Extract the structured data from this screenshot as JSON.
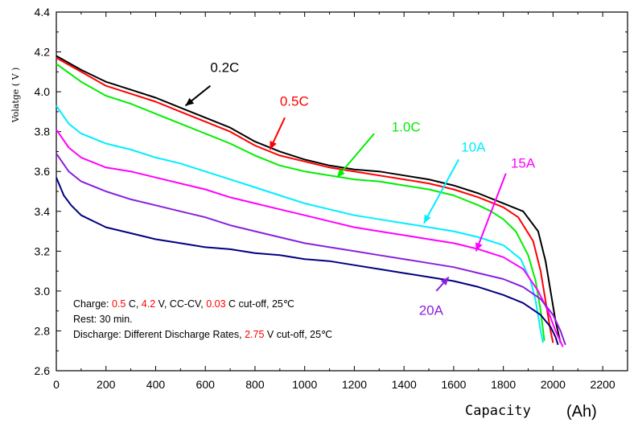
{
  "chart_data": {
    "type": "line",
    "xlabel_main": "Capacity",
    "xlabel_unit": "(Ah)",
    "ylabel": "Volatge ( V )",
    "xlim": [
      0,
      2300
    ],
    "ylim": [
      2.6,
      4.4
    ],
    "x_ticks": [
      "0",
      "200",
      "400",
      "600",
      "800",
      "1000",
      "1200",
      "1400",
      "1600",
      "1800",
      "2000",
      "2200"
    ],
    "y_ticks": [
      "2.6",
      "2.8",
      "3.0",
      "3.2",
      "3.4",
      "3.6",
      "3.8",
      "4.0",
      "4.2",
      "4.4"
    ],
    "grid": false,
    "series": [
      {
        "name": "0.2C",
        "color": "#000000",
        "label_x": 620,
        "label_y": 4.1,
        "arrow_from": [
          620,
          4.03
        ],
        "arrow_to": [
          520,
          3.93
        ],
        "points": [
          [
            0,
            4.18
          ],
          [
            100,
            4.11
          ],
          [
            200,
            4.05
          ],
          [
            300,
            4.01
          ],
          [
            400,
            3.97
          ],
          [
            500,
            3.92
          ],
          [
            600,
            3.87
          ],
          [
            700,
            3.82
          ],
          [
            800,
            3.75
          ],
          [
            900,
            3.7
          ],
          [
            1000,
            3.66
          ],
          [
            1100,
            3.63
          ],
          [
            1200,
            3.61
          ],
          [
            1300,
            3.6
          ],
          [
            1400,
            3.58
          ],
          [
            1500,
            3.56
          ],
          [
            1600,
            3.53
          ],
          [
            1700,
            3.49
          ],
          [
            1800,
            3.44
          ],
          [
            1880,
            3.4
          ],
          [
            1940,
            3.3
          ],
          [
            1970,
            3.15
          ],
          [
            1990,
            3.0
          ],
          [
            2010,
            2.85
          ],
          [
            2030,
            2.74
          ]
        ]
      },
      {
        "name": "0.5C",
        "color": "#ff0000",
        "label_x": 900,
        "label_y": 3.93,
        "arrow_from": [
          920,
          3.87
        ],
        "arrow_to": [
          860,
          3.71
        ],
        "points": [
          [
            0,
            4.17
          ],
          [
            100,
            4.1
          ],
          [
            200,
            4.03
          ],
          [
            300,
            3.99
          ],
          [
            400,
            3.95
          ],
          [
            500,
            3.9
          ],
          [
            600,
            3.85
          ],
          [
            700,
            3.8
          ],
          [
            800,
            3.73
          ],
          [
            900,
            3.68
          ],
          [
            1000,
            3.65
          ],
          [
            1100,
            3.62
          ],
          [
            1200,
            3.6
          ],
          [
            1300,
            3.58
          ],
          [
            1400,
            3.56
          ],
          [
            1500,
            3.54
          ],
          [
            1600,
            3.51
          ],
          [
            1700,
            3.47
          ],
          [
            1800,
            3.42
          ],
          [
            1860,
            3.37
          ],
          [
            1920,
            3.25
          ],
          [
            1950,
            3.1
          ],
          [
            1970,
            2.95
          ],
          [
            1990,
            2.8
          ],
          [
            2000,
            2.74
          ]
        ]
      },
      {
        "name": "1.0C",
        "color": "#00ee00",
        "label_x": 1350,
        "label_y": 3.8,
        "arrow_from": [
          1280,
          3.79
        ],
        "arrow_to": [
          1130,
          3.57
        ],
        "points": [
          [
            0,
            4.14
          ],
          [
            100,
            4.05
          ],
          [
            200,
            3.98
          ],
          [
            300,
            3.94
          ],
          [
            400,
            3.89
          ],
          [
            500,
            3.84
          ],
          [
            600,
            3.79
          ],
          [
            700,
            3.74
          ],
          [
            800,
            3.68
          ],
          [
            900,
            3.63
          ],
          [
            1000,
            3.6
          ],
          [
            1100,
            3.58
          ],
          [
            1200,
            3.56
          ],
          [
            1300,
            3.55
          ],
          [
            1400,
            3.53
          ],
          [
            1500,
            3.51
          ],
          [
            1600,
            3.48
          ],
          [
            1700,
            3.43
          ],
          [
            1750,
            3.4
          ],
          [
            1800,
            3.36
          ],
          [
            1850,
            3.3
          ],
          [
            1900,
            3.18
          ],
          [
            1930,
            3.05
          ],
          [
            1950,
            2.9
          ],
          [
            1965,
            2.75
          ]
        ]
      },
      {
        "name": "10A",
        "color": "#00eeff",
        "label_x": 1630,
        "label_y": 3.7,
        "arrow_from": [
          1620,
          3.66
        ],
        "arrow_to": [
          1480,
          3.34
        ],
        "points": [
          [
            0,
            3.93
          ],
          [
            50,
            3.84
          ],
          [
            100,
            3.79
          ],
          [
            200,
            3.74
          ],
          [
            300,
            3.71
          ],
          [
            400,
            3.67
          ],
          [
            500,
            3.64
          ],
          [
            600,
            3.6
          ],
          [
            700,
            3.56
          ],
          [
            800,
            3.52
          ],
          [
            900,
            3.48
          ],
          [
            1000,
            3.44
          ],
          [
            1100,
            3.41
          ],
          [
            1200,
            3.38
          ],
          [
            1300,
            3.36
          ],
          [
            1400,
            3.34
          ],
          [
            1500,
            3.32
          ],
          [
            1600,
            3.3
          ],
          [
            1700,
            3.27
          ],
          [
            1800,
            3.23
          ],
          [
            1870,
            3.16
          ],
          [
            1910,
            3.05
          ],
          [
            1930,
            2.95
          ],
          [
            1950,
            2.8
          ],
          [
            1960,
            2.74
          ]
        ]
      },
      {
        "name": "15A",
        "color": "#ff00ff",
        "label_x": 1830,
        "label_y": 3.62,
        "arrow_from": [
          1810,
          3.59
        ],
        "arrow_to": [
          1690,
          3.2
        ],
        "points": [
          [
            0,
            3.81
          ],
          [
            50,
            3.72
          ],
          [
            100,
            3.67
          ],
          [
            200,
            3.62
          ],
          [
            300,
            3.6
          ],
          [
            400,
            3.57
          ],
          [
            500,
            3.54
          ],
          [
            600,
            3.51
          ],
          [
            700,
            3.47
          ],
          [
            800,
            3.44
          ],
          [
            900,
            3.41
          ],
          [
            1000,
            3.38
          ],
          [
            1100,
            3.35
          ],
          [
            1200,
            3.32
          ],
          [
            1300,
            3.3
          ],
          [
            1400,
            3.28
          ],
          [
            1500,
            3.26
          ],
          [
            1600,
            3.24
          ],
          [
            1700,
            3.21
          ],
          [
            1800,
            3.17
          ],
          [
            1880,
            3.11
          ],
          [
            1940,
            3.0
          ],
          [
            1980,
            2.9
          ],
          [
            2010,
            2.8
          ],
          [
            2040,
            2.72
          ]
        ]
      },
      {
        "name": "20A",
        "color": "#8a20dd",
        "label_x": 1460,
        "label_y": 2.88,
        "arrow_from": [
          1530,
          3.0
        ],
        "arrow_to": [
          1580,
          3.07
        ],
        "points": [
          [
            0,
            3.69
          ],
          [
            50,
            3.6
          ],
          [
            100,
            3.55
          ],
          [
            200,
            3.5
          ],
          [
            300,
            3.46
          ],
          [
            400,
            3.43
          ],
          [
            500,
            3.4
          ],
          [
            600,
            3.37
          ],
          [
            700,
            3.33
          ],
          [
            800,
            3.3
          ],
          [
            900,
            3.27
          ],
          [
            1000,
            3.24
          ],
          [
            1100,
            3.22
          ],
          [
            1200,
            3.2
          ],
          [
            1300,
            3.18
          ],
          [
            1400,
            3.16
          ],
          [
            1500,
            3.14
          ],
          [
            1600,
            3.12
          ],
          [
            1700,
            3.09
          ],
          [
            1800,
            3.06
          ],
          [
            1880,
            3.02
          ],
          [
            1950,
            2.96
          ],
          [
            2000,
            2.88
          ],
          [
            2030,
            2.8
          ],
          [
            2050,
            2.73
          ]
        ]
      },
      {
        "name": "",
        "color": "#000080",
        "points": [
          [
            0,
            3.57
          ],
          [
            30,
            3.48
          ],
          [
            60,
            3.43
          ],
          [
            100,
            3.38
          ],
          [
            200,
            3.32
          ],
          [
            300,
            3.29
          ],
          [
            400,
            3.26
          ],
          [
            500,
            3.24
          ],
          [
            600,
            3.22
          ],
          [
            700,
            3.21
          ],
          [
            800,
            3.19
          ],
          [
            900,
            3.18
          ],
          [
            1000,
            3.16
          ],
          [
            1100,
            3.15
          ],
          [
            1200,
            3.13
          ],
          [
            1300,
            3.11
          ],
          [
            1400,
            3.09
          ],
          [
            1500,
            3.07
          ],
          [
            1600,
            3.05
          ],
          [
            1700,
            3.02
          ],
          [
            1800,
            2.98
          ],
          [
            1880,
            2.94
          ],
          [
            1950,
            2.88
          ],
          [
            1990,
            2.82
          ],
          [
            2010,
            2.77
          ],
          [
            2020,
            2.73
          ]
        ]
      }
    ]
  },
  "notes": {
    "line1": {
      "a": "Charge: ",
      "b": "0.5",
      "c": " C, ",
      "d": "4.2",
      "e": " V, CC-CV, ",
      "f": "0.03",
      "g": " C cut-off, 25℃"
    },
    "line2": "Rest: 30 min.",
    "line3": {
      "a": "Discharge: Different Discharge Rates, ",
      "b": "2.75",
      "c": " V cut-off, 25℃"
    },
    "highlight_color": "#ff0000"
  }
}
